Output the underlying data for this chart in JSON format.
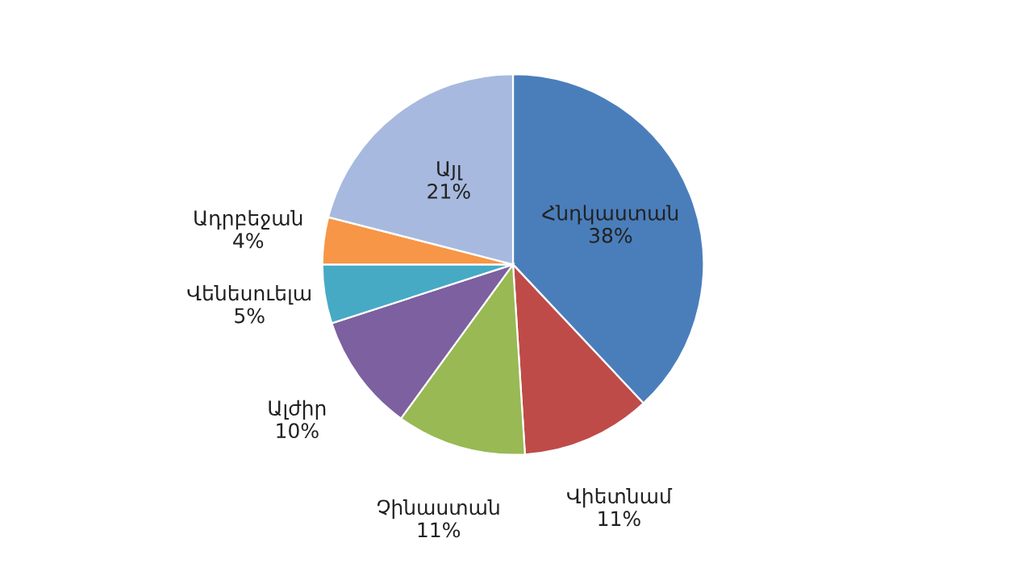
{
  "chart_data": {
    "type": "pie",
    "categories": [
      "Հնդկաստան",
      "Վիետնամ",
      "Չինաստան",
      "Ալժիր",
      "Վենեսուելա",
      "Ադրբեջան",
      "Այլ"
    ],
    "values": [
      38,
      11,
      11,
      10,
      5,
      4,
      21
    ],
    "colors": [
      "#4a7ebb",
      "#be4b48",
      "#98b954",
      "#7d60a0",
      "#46aac5",
      "#f79646",
      "#a7b9de"
    ],
    "value_labels": [
      "38%",
      "11%",
      "11%",
      "10%",
      "5%",
      "4%",
      "21%"
    ]
  }
}
